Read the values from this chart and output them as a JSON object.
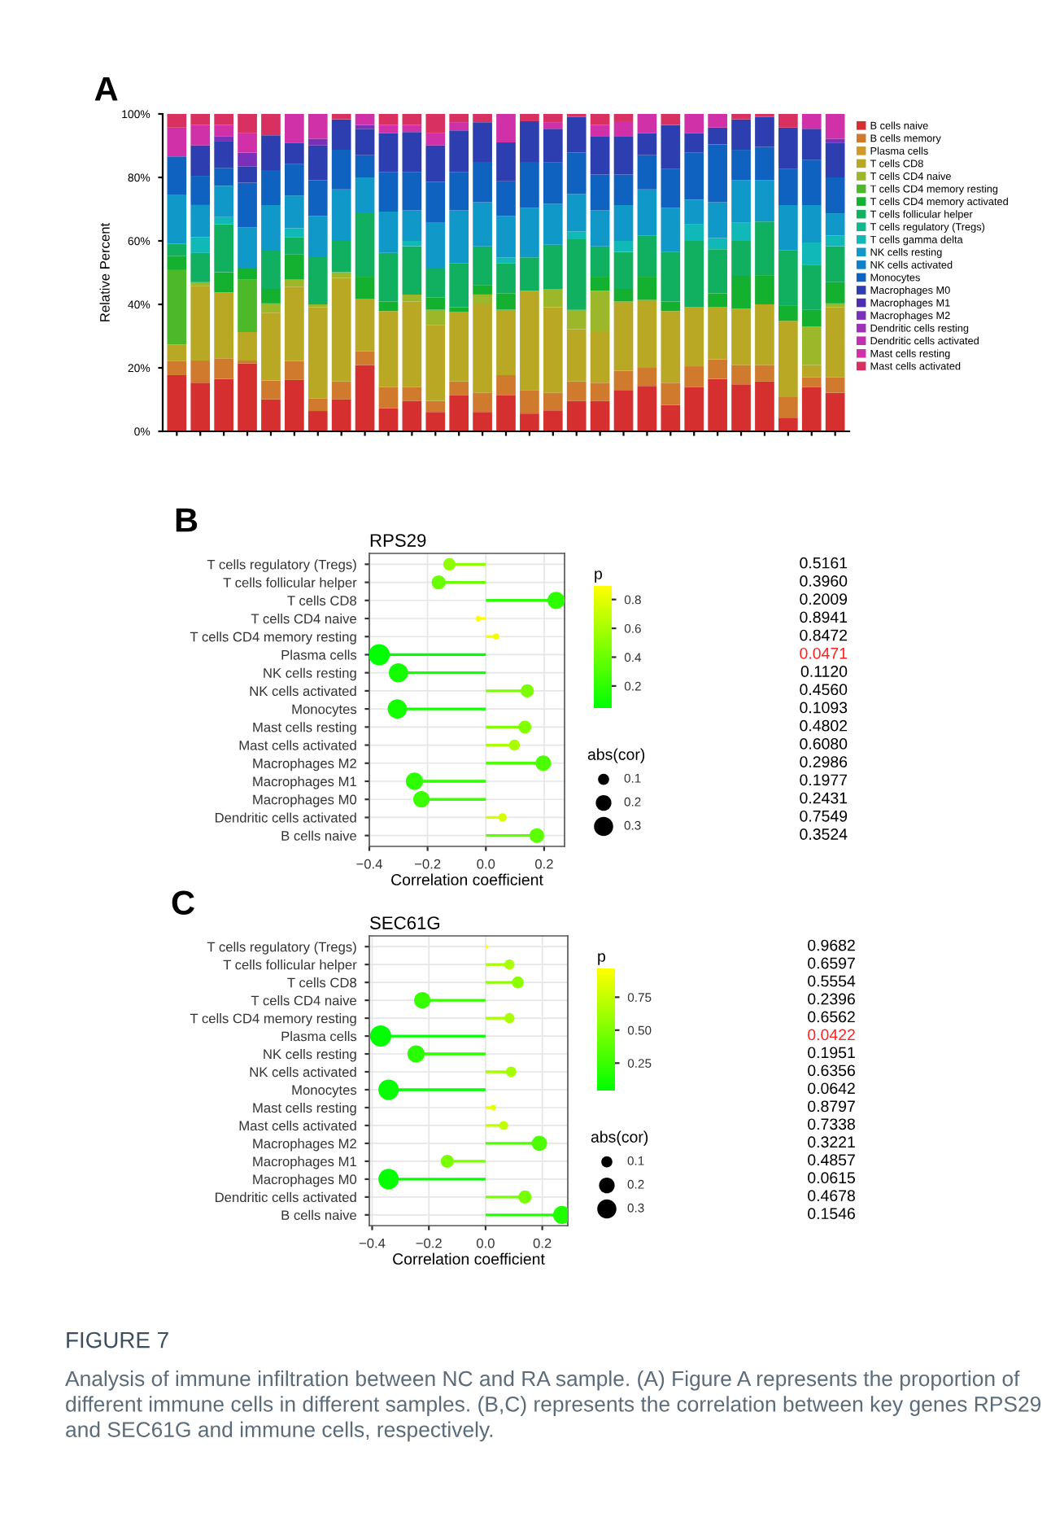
{
  "chart_data": [
    {
      "type": "bar",
      "stacked": true,
      "ylabel": "Relative Percent",
      "annotations": [
        "A"
      ],
      "legend": "right",
      "grid": false,
      "categories": [
        null,
        null,
        null,
        null,
        null,
        null,
        null,
        null,
        null,
        null,
        null,
        null,
        null,
        null,
        null,
        null,
        null,
        null,
        null,
        null,
        null,
        null,
        null,
        null,
        null,
        null,
        null,
        null,
        null
      ],
      "ylim": [
        0,
        100
      ],
      "yticks": [
        {
          "value": 0,
          "label": "0%"
        },
        {
          "value": 20,
          "label": "20%"
        },
        {
          "value": 40,
          "label": "40%"
        },
        {
          "value": 60,
          "label": "60%"
        },
        {
          "value": 80,
          "label": "80%"
        },
        {
          "value": 100,
          "label": "100%"
        }
      ],
      "series": [
        {
          "name": "B cells naive",
          "color": "#d62f2f",
          "values": [
            17.7,
            15.3,
            16.5,
            21.4,
            10.1,
            16.2,
            6.4,
            10.1,
            20.9,
            7.3,
            9.6,
            6.1,
            11.3,
            6.1,
            11.3,
            5.6,
            6.6,
            9.6,
            9.6,
            13,
            14.3,
            8.3,
            13.9,
            16.5,
            14.8,
            15.7,
            4.3,
            13.9,
            12.2
          ]
        },
        {
          "name": "B cells memory",
          "color": "#cf7a2c",
          "values": [
            4.4,
            7,
            6.5,
            0.9,
            5.9,
            5.9,
            4,
            5.6,
            4.3,
            6.6,
            4.3,
            3.5,
            4.4,
            6.1,
            6.4,
            7.4,
            5.6,
            6.1,
            5.7,
            6.1,
            5.7,
            7,
            6.6,
            6.1,
            6.1,
            5.2,
            6.5,
            3.1,
            4.8
          ]
        },
        {
          "name": "Plasma cells",
          "color": "#d09a2a",
          "values": [
            0,
            0,
            0,
            0,
            0,
            0,
            0,
            0,
            0,
            0,
            0,
            0,
            0,
            0,
            0,
            0,
            0,
            0,
            0,
            0,
            0,
            0,
            0,
            0,
            0,
            0,
            0,
            0,
            0
          ]
        },
        {
          "name": "T cells CD8",
          "color": "#b8a823",
          "values": [
            5.2,
            23.4,
            20.8,
            9,
            21.4,
            23.5,
            28.7,
            32.6,
            16.5,
            24,
            27,
            23.8,
            22,
            27.8,
            20.6,
            31.3,
            26.9,
            16.5,
            16,
            21.8,
            21.4,
            22.6,
            18.6,
            16.5,
            17.7,
            19.1,
            24,
            3.9,
            22.1
          ]
        },
        {
          "name": "T cells CD4 naive",
          "color": "#9cb82a",
          "values": [
            0,
            1.3,
            0,
            0,
            2.9,
            2.2,
            0.9,
            1.8,
            0,
            0,
            2.2,
            4.9,
            0,
            3.1,
            0,
            0,
            5.8,
            6.1,
            13,
            0,
            0,
            0,
            0,
            0,
            0,
            0,
            0,
            12.1,
            1.2
          ]
        },
        {
          "name": "T cells CD4 memory resting",
          "color": "#4cb82a",
          "values": [
            23.5,
            0,
            0,
            16.5,
            0,
            0,
            0,
            0,
            0,
            0,
            0,
            0,
            0,
            0,
            0,
            0,
            0,
            0,
            0,
            0,
            0,
            0,
            0,
            0,
            0,
            0,
            0,
            0,
            0
          ]
        },
        {
          "name": "T cells CD4 memory activated",
          "color": "#14b030",
          "values": [
            4.5,
            0,
            6.3,
            3.5,
            4.6,
            7.9,
            0,
            0,
            7,
            3,
            0,
            3.8,
            1.4,
            3,
            5.2,
            0,
            0,
            0,
            4.4,
            4,
            7.3,
            3,
            0,
            4.4,
            10.4,
            9.2,
            4.9,
            5.3,
            6.7
          ]
        },
        {
          "name": "T cells follicular helper",
          "color": "#10b060",
          "values": [
            3.8,
            9.2,
            15.1,
            0,
            12,
            5.5,
            15.1,
            9.9,
            20,
            15.3,
            15.2,
            9.2,
            13.9,
            12.2,
            9.5,
            10.5,
            13.9,
            22.2,
            9.6,
            11.6,
            13,
            15.6,
            20.9,
            13.9,
            11,
            16.9,
            17.3,
            14.2,
            11.3
          ]
        },
        {
          "name": "T cells regulatory (Tregs)",
          "color": "#10b890",
          "values": [
            0,
            0,
            0,
            0,
            0,
            0,
            0,
            0,
            0,
            0,
            0,
            0,
            0,
            0,
            0,
            0,
            0,
            0,
            0,
            0,
            0,
            0,
            0,
            0,
            0,
            0,
            0,
            0,
            0
          ]
        },
        {
          "name": "T cells gamma delta",
          "color": "#10b8b8",
          "values": [
            0,
            5,
            2.3,
            0,
            0,
            2.8,
            0,
            0,
            0,
            0,
            1.7,
            0,
            0,
            0,
            1.8,
            0,
            0,
            2.5,
            0,
            3.5,
            0,
            0,
            5.2,
            3.5,
            5.7,
            0,
            0,
            7,
            3.4
          ]
        },
        {
          "name": "NK cells resting",
          "color": "#1098c8",
          "values": [
            15.3,
            10.1,
            9.9,
            13,
            14.4,
            10.3,
            12.7,
            16.2,
            11.3,
            13,
            9.6,
            14.4,
            16.6,
            13.9,
            13,
            15.6,
            12.9,
            11.8,
            11.3,
            11.3,
            14.5,
            13.9,
            7.8,
            11.3,
            13.4,
            13,
            14.3,
            11.8,
            7
          ]
        },
        {
          "name": "NK cells activated",
          "color": "#1080c8",
          "values": [
            0,
            0,
            0,
            0,
            0,
            0,
            0,
            0,
            0,
            0,
            0,
            0,
            0,
            0,
            0,
            0,
            0,
            0,
            0,
            0,
            0,
            0,
            0,
            0,
            0,
            0,
            0,
            0,
            0
          ]
        },
        {
          "name": "Monocytes",
          "color": "#1062c0",
          "values": [
            12.2,
            9.2,
            5.6,
            14,
            11,
            10,
            11.3,
            12.5,
            7,
            12.5,
            12.1,
            12.9,
            12.1,
            12.7,
            11,
            14.5,
            13,
            13,
            11.3,
            9.6,
            10.8,
            12.2,
            14.8,
            18.2,
            9.6,
            10.5,
            11.3,
            14.3,
            11.3
          ]
        },
        {
          "name": "Macrophages M0",
          "color": "#2c3eb0",
          "values": [
            0,
            9.6,
            8.3,
            5.2,
            11.0,
            6.5,
            11,
            9.6,
            8.3,
            12.2,
            12.6,
            11.5,
            13.1,
            12.5,
            12.2,
            12.8,
            10.6,
            11.3,
            12.1,
            12.1,
            6.9,
            13.9,
            6.1,
            5.3,
            9.6,
            9.5,
            13.1,
            9.7,
            10.8
          ]
        },
        {
          "name": "Macrophages M1",
          "color": "#4a30b0",
          "values": [
            0,
            0,
            0,
            0,
            0,
            0,
            0,
            0,
            0,
            0,
            0,
            0,
            0,
            0,
            0,
            0,
            0,
            0,
            0,
            0,
            0,
            0,
            0,
            0,
            0,
            0,
            0,
            0,
            0
          ]
        },
        {
          "name": "Macrophages M2",
          "color": "#7a30b8",
          "values": [
            0,
            0,
            1.7,
            4.3,
            0,
            0,
            2.1,
            0,
            1.2,
            0,
            0,
            0,
            0,
            0,
            0,
            0,
            0,
            0,
            0,
            0,
            0,
            0,
            0,
            0,
            0,
            0,
            0,
            0,
            1.4
          ]
        },
        {
          "name": "Dendritic cells resting",
          "color": "#a030b8",
          "values": [
            0,
            0,
            0,
            0,
            0,
            0,
            0,
            0,
            0,
            0,
            0,
            0,
            0,
            0,
            0,
            0,
            0,
            0,
            0,
            0,
            0,
            0,
            0,
            0,
            0,
            0,
            0,
            0,
            0
          ]
        },
        {
          "name": "Dendritic cells activated",
          "color": "#c030b0",
          "values": [
            0,
            0,
            0,
            0,
            0,
            0,
            0,
            0,
            0,
            0,
            0,
            0,
            0,
            0,
            0,
            0,
            0,
            0,
            0,
            0,
            0,
            0,
            0,
            0,
            0,
            0,
            0,
            0,
            0
          ]
        },
        {
          "name": "Mast cells resting",
          "color": "#d030a8",
          "values": [
            9.1,
            6.4,
            3.5,
            6.1,
            0,
            9.2,
            7.8,
            0,
            3.5,
            2.6,
            2.2,
            3.8,
            2.6,
            0,
            9,
            0,
            2.1,
            0,
            3.5,
            4.7,
            6.1,
            0,
            6.1,
            4.3,
            0,
            0,
            0,
            4.7,
            7.8
          ]
        },
        {
          "name": "Mast cells activated",
          "color": "#d83060",
          "values": [
            4.3,
            3.5,
            3.5,
            6.1,
            6.7,
            0,
            0,
            1.7,
            0,
            3.5,
            3.5,
            6.1,
            2.6,
            2.6,
            0,
            2.3,
            2.6,
            0.9,
            3.5,
            2.3,
            0,
            3.5,
            0,
            0,
            1.7,
            0.9,
            4.3,
            0,
            0
          ]
        }
      ]
    },
    {
      "type": "lollipop",
      "orientation": "horizontal",
      "title": "RPS29",
      "xlabel": "Correlation coefficient",
      "annotations": [
        "B"
      ],
      "clabel": "p",
      "legend_title": "abs(cor)",
      "grid": true,
      "marker": "circle",
      "sizes": [
        0.125,
        0.162,
        0.241,
        0.026,
        0.035,
        0.366,
        0.3,
        0.142,
        0.304,
        0.134,
        0.098,
        0.197,
        0.245,
        0.221,
        0.057,
        0.175
      ],
      "categories": [
        "T cells regulatory (Tregs)",
        "T cells follicular helper",
        "T cells CD8",
        "T cells CD4 naive",
        "T cells CD4 memory resting",
        "Plasma cells",
        "NK cells resting",
        "NK cells activated",
        "Monocytes",
        "Mast cells resting",
        "Mast cells activated",
        "Macrophages M2",
        "Macrophages M1",
        "Macrophages M0",
        "Dendritic cells activated",
        "B cells naive"
      ],
      "values": [
        -0.125,
        -0.162,
        0.241,
        -0.026,
        0.035,
        -0.366,
        -0.3,
        0.142,
        -0.304,
        0.134,
        0.098,
        0.197,
        -0.245,
        -0.221,
        0.057,
        0.175
      ],
      "cvalues": [
        0.5161,
        0.396,
        0.2009,
        0.8941,
        0.8472,
        0.0471,
        0.112,
        0.456,
        0.1093,
        0.4802,
        0.608,
        0.2986,
        0.1977,
        0.2431,
        0.7549,
        0.3524
      ],
      "y2_categories": [
        "0.5161",
        "0.3960",
        "0.2009",
        "0.8941",
        "0.8472",
        "0.0471",
        "0.1120",
        "0.4560",
        "0.1093",
        "0.4802",
        "0.6080",
        "0.2986",
        "0.1977",
        "0.2431",
        "0.7549",
        "0.3524"
      ],
      "xlim": [
        -0.4,
        0.27
      ],
      "xticks": [
        {
          "value": -0.4,
          "label": "−0.4"
        },
        {
          "value": -0.2,
          "label": "−0.2"
        },
        {
          "value": 0,
          "label": "0.0"
        },
        {
          "value": 0.2,
          "label": "0.2"
        }
      ],
      "clim": [
        0.047,
        0.894
      ],
      "cticks": [
        0.2,
        0.4,
        0.6,
        0.8
      ],
      "size_legend": [
        0.1,
        0.2,
        0.3
      ]
    },
    {
      "type": "lollipop",
      "orientation": "horizontal",
      "title": "SEC61G",
      "xlabel": "Correlation coefficient",
      "clabel": "p",
      "legend_title": "abs(cor)",
      "grid": true,
      "marker": "circle",
      "sizes": [
        0.006,
        0.084,
        0.114,
        0.223,
        0.084,
        0.37,
        0.245,
        0.09,
        0.342,
        0.027,
        0.064,
        0.19,
        0.135,
        0.342,
        0.139,
        0.27
      ],
      "annotations": [
        "C",
        "FIGURE 7",
        "Analysis of immune infiltration between NC and RA sample. (A) Figure A represents the proportion of different immune cells in different samples. (B,C) represents the correlation between key genes RPS29 and SEC61G and immune cells, respectively."
      ],
      "categories": [
        "T cells regulatory (Tregs)",
        "T cells follicular helper",
        "T cells CD8",
        "T cells CD4 naive",
        "T cells CD4 memory resting",
        "Plasma cells",
        "NK cells resting",
        "NK cells activated",
        "Monocytes",
        "Mast cells resting",
        "Mast cells activated",
        "Macrophages M2",
        "Macrophages M1",
        "Macrophages M0",
        "Dendritic cells activated",
        "B cells naive"
      ],
      "values": [
        0.006,
        0.084,
        0.114,
        -0.223,
        0.084,
        -0.37,
        -0.245,
        0.09,
        -0.342,
        0.027,
        0.064,
        0.19,
        -0.135,
        -0.342,
        0.139,
        0.27
      ],
      "cvalues": [
        0.9682,
        0.6597,
        0.5554,
        0.2396,
        0.6562,
        0.0422,
        0.1951,
        0.6356,
        0.0642,
        0.8797,
        0.7338,
        0.3221,
        0.4857,
        0.0615,
        0.4678,
        0.1546
      ],
      "y2_categories": [
        "0.9682",
        "0.6597",
        "0.5554",
        "0.2396",
        "0.6562",
        "0.0422",
        "0.1951",
        "0.6356",
        "0.0642",
        "0.8797",
        "0.7338",
        "0.3221",
        "0.4857",
        "0.0615",
        "0.4678",
        "0.1546"
      ],
      "xlim": [
        -0.41,
        0.29
      ],
      "xticks": [
        {
          "value": -0.4,
          "label": "−0.4"
        },
        {
          "value": -0.2,
          "label": "−0.2"
        },
        {
          "value": 0,
          "label": "0.0"
        },
        {
          "value": 0.2,
          "label": "0.2"
        }
      ],
      "clim": [
        0.042,
        0.968
      ],
      "cticks": [
        {
          "value": 0.25,
          "label": "0.25"
        },
        {
          "value": 0.5,
          "label": "0.50"
        },
        {
          "value": 0.75,
          "label": "0.75"
        }
      ],
      "size_legend": [
        0.1,
        0.2,
        0.3
      ]
    }
  ]
}
